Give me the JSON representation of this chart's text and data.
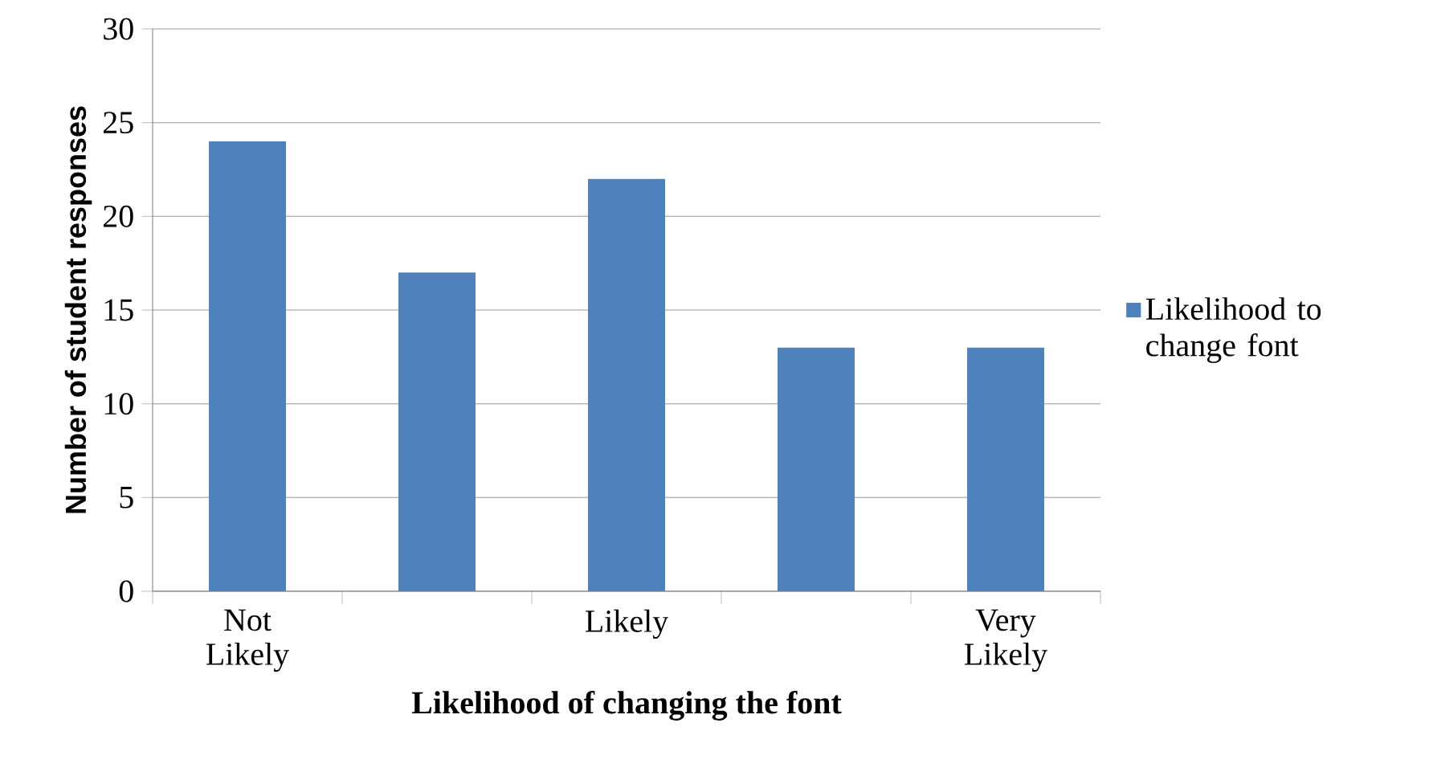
{
  "chart_data": {
    "type": "bar",
    "xlabel": "Likelihood of changing the font",
    "ylabel": "Number of student responses",
    "categories": [
      "Not Likely",
      null,
      "Likely",
      null,
      "Very Likely"
    ],
    "series": [
      {
        "name": "Likelihood to change font",
        "color": "#4f81bd",
        "values": [
          24,
          17,
          22,
          13,
          13
        ]
      }
    ],
    "ylim": [
      0,
      30
    ],
    "yticks": [
      0,
      5,
      10,
      15,
      20,
      25,
      30
    ],
    "grid": "y",
    "legend": "right"
  }
}
